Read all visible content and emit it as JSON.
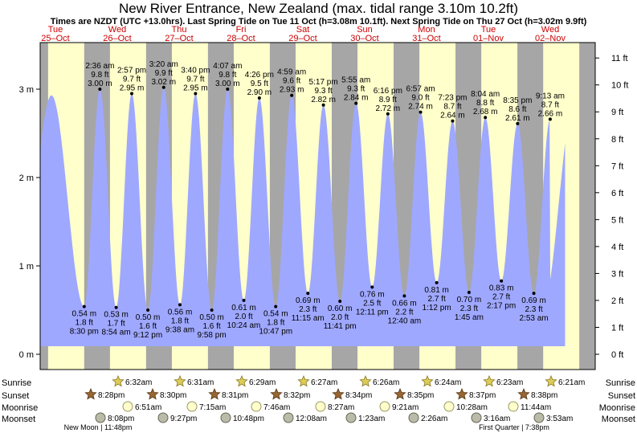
{
  "title": "New River Entrance, New Zealand (max. tidal range 3.10m 10.2ft)",
  "subtitle": "Times are NZDT (UTC +13.0hrs). Last Spring Tide on Tue 11 Oct (h=3.08m 10.1ft). Next Spring Tide on Thu 27 Oct (h=3.02m 9.9ft)",
  "colors": {
    "day_bg": "#ffffcc",
    "night_bg": "#a6a6a6",
    "tide_fill": "#9fa8ff",
    "date_text": "#cc0000",
    "frame": "#000000"
  },
  "days": [
    {
      "dow": "Tue",
      "date": "25–Oct"
    },
    {
      "dow": "Wed",
      "date": "26–Oct"
    },
    {
      "dow": "Thu",
      "date": "27–Oct"
    },
    {
      "dow": "Fri",
      "date": "28–Oct"
    },
    {
      "dow": "Sat",
      "date": "29–Oct"
    },
    {
      "dow": "Sun",
      "date": "30–Oct"
    },
    {
      "dow": "Mon",
      "date": "31–Oct"
    },
    {
      "dow": "Tue",
      "date": "01–Nov"
    },
    {
      "dow": "Wed",
      "date": "02–Nov"
    }
  ],
  "chart_data": {
    "type": "area",
    "x_unit": "hours from 00:00 Tue 25-Oct (NZDT)",
    "ylim_m": [
      -0.3,
      3.5
    ],
    "ylim_ft": [
      -0.98,
      11.48
    ],
    "y_ticks_m": [
      {
        "v": 0,
        "label": "0 m"
      },
      {
        "v": 1,
        "label": "1 m"
      },
      {
        "v": 2,
        "label": "2 m"
      },
      {
        "v": 3,
        "label": "3 m"
      }
    ],
    "y_ticks_ft": [
      "0 ft",
      "1 ft",
      "2 ft",
      "3 ft",
      "4 ft",
      "5 ft",
      "6 ft",
      "7 ft",
      "8 ft",
      "9 ft",
      "10 ft",
      "11 ft"
    ],
    "tides": [
      {
        "type": "high",
        "h": 2.93,
        "lines": []
      },
      {
        "type": "low",
        "h": 0.54,
        "lines": [
          "0.54 m",
          "1.8 ft",
          "8:30 pm"
        ]
      },
      {
        "type": "high",
        "h": 3.0,
        "lines": [
          "2:36 am",
          "9.8 ft",
          "3.00 m"
        ]
      },
      {
        "type": "low",
        "h": 0.53,
        "lines": [
          "0.53 m",
          "1.7 ft",
          "8:54 am"
        ]
      },
      {
        "type": "high",
        "h": 2.95,
        "lines": [
          "2:57 pm",
          "9.7 ft",
          "2.95 m"
        ]
      },
      {
        "type": "low",
        "h": 0.5,
        "lines": [
          "0.50 m",
          "1.6 ft",
          "9:12 pm"
        ]
      },
      {
        "type": "high",
        "h": 3.02,
        "lines": [
          "3:20 am",
          "9.9 ft",
          "3.02 m"
        ]
      },
      {
        "type": "low",
        "h": 0.56,
        "lines": [
          "0.56 m",
          "1.8 ft",
          "9:38 am"
        ]
      },
      {
        "type": "high",
        "h": 2.95,
        "lines": [
          "3:40 pm",
          "9.7 ft",
          "2.95 m"
        ]
      },
      {
        "type": "low",
        "h": 0.5,
        "lines": [
          "0.50 m",
          "1.6 ft",
          "9:58 pm"
        ]
      },
      {
        "type": "high",
        "h": 3.0,
        "lines": [
          "4:07 am",
          "9.8 ft",
          "3.00 m"
        ]
      },
      {
        "type": "low",
        "h": 0.61,
        "lines": [
          "0.61 m",
          "2.0 ft",
          "10:24 am"
        ]
      },
      {
        "type": "high",
        "h": 2.9,
        "lines": [
          "4:26 pm",
          "9.5 ft",
          "2.90 m"
        ]
      },
      {
        "type": "low",
        "h": 0.54,
        "lines": [
          "0.54 m",
          "1.8 ft",
          "10:47 pm"
        ]
      },
      {
        "type": "high",
        "h": 2.93,
        "lines": [
          "4:59 am",
          "9.6 ft",
          "2.93 m"
        ]
      },
      {
        "type": "low",
        "h": 0.69,
        "lines": [
          "0.69 m",
          "2.3 ft",
          "11:15 am"
        ]
      },
      {
        "type": "high",
        "h": 2.82,
        "lines": [
          "5:17 pm",
          "9.3 ft",
          "2.82 m"
        ]
      },
      {
        "type": "low",
        "h": 0.6,
        "lines": [
          "0.60 m",
          "2.0 ft",
          "11:41 pm"
        ]
      },
      {
        "type": "high",
        "h": 2.84,
        "lines": [
          "5:55 am",
          "9.3 ft",
          "2.84 m"
        ]
      },
      {
        "type": "low",
        "h": 0.76,
        "lines": [
          "0.76 m",
          "2.5 ft",
          "12:11 pm"
        ]
      },
      {
        "type": "high",
        "h": 2.72,
        "lines": [
          "6:16 pm",
          "8.9 ft",
          "2.72 m"
        ]
      },
      {
        "type": "low",
        "h": 0.66,
        "lines": [
          "0.66 m",
          "2.2 ft",
          "12:40 am"
        ]
      },
      {
        "type": "high",
        "h": 2.74,
        "lines": [
          "6:57 am",
          "9.0 ft",
          "2.74 m"
        ]
      },
      {
        "type": "low",
        "h": 0.81,
        "lines": [
          "0.81 m",
          "2.7 ft",
          "1:12 pm"
        ]
      },
      {
        "type": "high",
        "h": 2.64,
        "lines": [
          "7:23 pm",
          "8.7 ft",
          "2.64 m"
        ]
      },
      {
        "type": "low",
        "h": 0.7,
        "lines": [
          "0.70 m",
          "2.3 ft",
          "1:45 am"
        ]
      },
      {
        "type": "high",
        "h": 2.68,
        "lines": [
          "8:04 am",
          "8.8 ft",
          "2.68 m"
        ]
      },
      {
        "type": "low",
        "h": 0.83,
        "lines": [
          "0.83 m",
          "2.7 ft",
          "2:17 pm"
        ]
      },
      {
        "type": "high",
        "h": 2.61,
        "lines": [
          "8:35 pm",
          "8.6 ft",
          "2.61 m"
        ]
      },
      {
        "type": "low",
        "h": 0.69,
        "lines": [
          "0.69 m",
          "2.3 ft",
          "2:53 am"
        ]
      },
      {
        "type": "high",
        "h": 2.66,
        "lines": [
          "9:13 am",
          "8.7 ft",
          "2.66 m"
        ]
      }
    ]
  },
  "rows": {
    "labels": [
      "Sunrise",
      "Sunset",
      "Moonrise",
      "Moonset"
    ],
    "sunrise": [
      "6:32am",
      "6:31am",
      "6:29am",
      "6:27am",
      "6:26am",
      "6:24am",
      "6:23am",
      "6:21am"
    ],
    "sunset": [
      "8:28pm",
      "8:30pm",
      "8:31pm",
      "8:32pm",
      "8:34pm",
      "8:35pm",
      "8:37pm",
      "8:38pm"
    ],
    "moonrise": [
      "6:51am",
      "7:15am",
      "7:46am",
      "8:27am",
      "9:21am",
      "10:28am",
      "11:44am"
    ],
    "moonset": [
      "8:08pm",
      "9:27pm",
      "10:48pm",
      "12:08am",
      "1:23am",
      "2:26am",
      "3:16am",
      "3:53am"
    ],
    "phases": [
      "New Moon | 11:48pm",
      "First Quarter | 7:38pm"
    ]
  }
}
